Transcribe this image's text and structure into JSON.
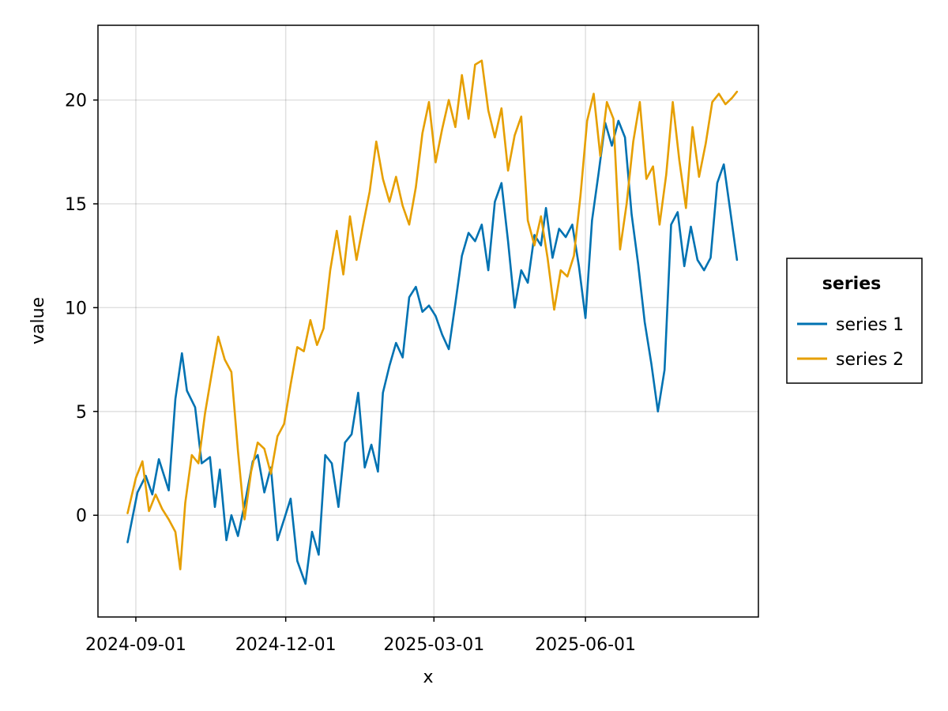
{
  "chart_data": {
    "type": "line",
    "xlabel": "x",
    "ylabel": "value",
    "x_axis": {
      "kind": "date",
      "range": [
        "2024-08-09",
        "2025-09-14"
      ],
      "ticks": [
        "2024-09-01",
        "2024-12-01",
        "2025-03-01",
        "2025-06-01"
      ]
    },
    "y_axis": {
      "range": [
        -4.9,
        23.6
      ],
      "ticks": [
        0,
        5,
        10,
        15,
        20
      ],
      "tick_labels": [
        "0",
        "5",
        "10",
        "15",
        "20"
      ]
    },
    "grid": true,
    "legend": {
      "title": "series",
      "placement": "right"
    },
    "series": [
      {
        "name": "series 1",
        "color": "#0072b2",
        "points": [
          [
            "2024-08-27",
            -1.3
          ],
          [
            "2024-09-02",
            1.1
          ],
          [
            "2024-09-07",
            1.9
          ],
          [
            "2024-09-11",
            1.0
          ],
          [
            "2024-09-15",
            2.7
          ],
          [
            "2024-09-21",
            1.2
          ],
          [
            "2024-09-25",
            5.6
          ],
          [
            "2024-09-29",
            7.8
          ],
          [
            "2024-10-02",
            6.0
          ],
          [
            "2024-10-07",
            5.2
          ],
          [
            "2024-10-11",
            2.5
          ],
          [
            "2024-10-16",
            2.8
          ],
          [
            "2024-10-19",
            0.4
          ],
          [
            "2024-10-22",
            2.2
          ],
          [
            "2024-10-26",
            -1.2
          ],
          [
            "2024-10-29",
            0.0
          ],
          [
            "2024-11-02",
            -1.0
          ],
          [
            "2024-11-07",
            0.9
          ],
          [
            "2024-11-11",
            2.6
          ],
          [
            "2024-11-14",
            2.9
          ],
          [
            "2024-11-18",
            1.1
          ],
          [
            "2024-11-22",
            2.3
          ],
          [
            "2024-11-26",
            -1.2
          ],
          [
            "2024-11-30",
            -0.2
          ],
          [
            "2024-12-04",
            0.8
          ],
          [
            "2024-12-08",
            -2.2
          ],
          [
            "2024-12-13",
            -3.3
          ],
          [
            "2024-12-17",
            -0.8
          ],
          [
            "2024-12-21",
            -1.9
          ],
          [
            "2024-12-25",
            2.9
          ],
          [
            "2024-12-29",
            2.5
          ],
          [
            "2025-01-02",
            0.4
          ],
          [
            "2025-01-06",
            3.5
          ],
          [
            "2025-01-10",
            3.9
          ],
          [
            "2025-01-14",
            5.9
          ],
          [
            "2025-01-18",
            2.3
          ],
          [
            "2025-01-22",
            3.4
          ],
          [
            "2025-01-26",
            2.1
          ],
          [
            "2025-01-29",
            5.9
          ],
          [
            "2025-02-02",
            7.2
          ],
          [
            "2025-02-06",
            8.3
          ],
          [
            "2025-02-10",
            7.6
          ],
          [
            "2025-02-14",
            10.5
          ],
          [
            "2025-02-18",
            11.0
          ],
          [
            "2025-02-22",
            9.8
          ],
          [
            "2025-02-26",
            10.1
          ],
          [
            "2025-03-02",
            9.6
          ],
          [
            "2025-03-06",
            8.7
          ],
          [
            "2025-03-10",
            8.0
          ],
          [
            "2025-03-14",
            10.2
          ],
          [
            "2025-03-18",
            12.5
          ],
          [
            "2025-03-22",
            13.6
          ],
          [
            "2025-03-26",
            13.2
          ],
          [
            "2025-03-30",
            14.0
          ],
          [
            "2025-04-03",
            11.8
          ],
          [
            "2025-04-07",
            15.1
          ],
          [
            "2025-04-11",
            16.0
          ],
          [
            "2025-04-15",
            13.2
          ],
          [
            "2025-04-19",
            10.0
          ],
          [
            "2025-04-23",
            11.8
          ],
          [
            "2025-04-27",
            11.2
          ],
          [
            "2025-05-01",
            13.5
          ],
          [
            "2025-05-05",
            13.0
          ],
          [
            "2025-05-08",
            14.8
          ],
          [
            "2025-05-12",
            12.4
          ],
          [
            "2025-05-16",
            13.8
          ],
          [
            "2025-05-20",
            13.4
          ],
          [
            "2025-05-24",
            14.0
          ],
          [
            "2025-05-28",
            12.0
          ],
          [
            "2025-06-01",
            9.5
          ],
          [
            "2025-06-05",
            14.2
          ],
          [
            "2025-06-09",
            16.5
          ],
          [
            "2025-06-13",
            18.9
          ],
          [
            "2025-06-17",
            17.8
          ],
          [
            "2025-06-21",
            19.0
          ],
          [
            "2025-06-25",
            18.2
          ],
          [
            "2025-06-29",
            14.5
          ],
          [
            "2025-07-03",
            12.1
          ],
          [
            "2025-07-07",
            9.3
          ],
          [
            "2025-07-11",
            7.3
          ],
          [
            "2025-07-15",
            5.0
          ],
          [
            "2025-07-19",
            7.0
          ],
          [
            "2025-07-23",
            14.0
          ],
          [
            "2025-07-27",
            14.6
          ],
          [
            "2025-07-31",
            12.0
          ],
          [
            "2025-08-04",
            13.9
          ],
          [
            "2025-08-08",
            12.3
          ],
          [
            "2025-08-12",
            11.8
          ],
          [
            "2025-08-16",
            12.4
          ],
          [
            "2025-08-20",
            16.0
          ],
          [
            "2025-08-24",
            16.9
          ],
          [
            "2025-08-28",
            14.6
          ],
          [
            "2025-09-01",
            12.3
          ]
        ]
      },
      {
        "name": "series 2",
        "color": "#e69f00",
        "points": [
          [
            "2024-08-27",
            0.1
          ],
          [
            "2024-09-01",
            1.8
          ],
          [
            "2024-09-05",
            2.6
          ],
          [
            "2024-09-09",
            0.2
          ],
          [
            "2024-09-13",
            1.0
          ],
          [
            "2024-09-17",
            0.3
          ],
          [
            "2024-09-21",
            -0.2
          ],
          [
            "2024-09-25",
            -0.8
          ],
          [
            "2024-09-28",
            -2.6
          ],
          [
            "2024-10-01",
            0.6
          ],
          [
            "2024-10-05",
            2.9
          ],
          [
            "2024-10-09",
            2.5
          ],
          [
            "2024-10-13",
            4.9
          ],
          [
            "2024-10-17",
            6.8
          ],
          [
            "2024-10-21",
            8.6
          ],
          [
            "2024-10-25",
            7.5
          ],
          [
            "2024-10-29",
            6.9
          ],
          [
            "2024-11-02",
            3.1
          ],
          [
            "2024-11-06",
            -0.2
          ],
          [
            "2024-11-10",
            2.1
          ],
          [
            "2024-11-14",
            3.5
          ],
          [
            "2024-11-18",
            3.2
          ],
          [
            "2024-11-22",
            2.0
          ],
          [
            "2024-11-26",
            3.8
          ],
          [
            "2024-11-30",
            4.4
          ],
          [
            "2024-12-04",
            6.3
          ],
          [
            "2024-12-08",
            8.1
          ],
          [
            "2024-12-12",
            7.9
          ],
          [
            "2024-12-16",
            9.4
          ],
          [
            "2024-12-20",
            8.2
          ],
          [
            "2024-12-24",
            9.0
          ],
          [
            "2024-12-28",
            11.8
          ],
          [
            "2025-01-01",
            13.7
          ],
          [
            "2025-01-05",
            11.6
          ],
          [
            "2025-01-09",
            14.4
          ],
          [
            "2025-01-13",
            12.3
          ],
          [
            "2025-01-17",
            14.0
          ],
          [
            "2025-01-21",
            15.6
          ],
          [
            "2025-01-25",
            18.0
          ],
          [
            "2025-01-29",
            16.2
          ],
          [
            "2025-02-02",
            15.1
          ],
          [
            "2025-02-06",
            16.3
          ],
          [
            "2025-02-10",
            14.9
          ],
          [
            "2025-02-14",
            14.0
          ],
          [
            "2025-02-18",
            15.8
          ],
          [
            "2025-02-22",
            18.4
          ],
          [
            "2025-02-26",
            19.9
          ],
          [
            "2025-03-02",
            17.0
          ],
          [
            "2025-03-06",
            18.6
          ],
          [
            "2025-03-10",
            20.0
          ],
          [
            "2025-03-14",
            18.7
          ],
          [
            "2025-03-18",
            21.2
          ],
          [
            "2025-03-22",
            19.1
          ],
          [
            "2025-03-26",
            21.7
          ],
          [
            "2025-03-30",
            21.9
          ],
          [
            "2025-04-03",
            19.5
          ],
          [
            "2025-04-07",
            18.2
          ],
          [
            "2025-04-11",
            19.6
          ],
          [
            "2025-04-15",
            16.6
          ],
          [
            "2025-04-19",
            18.3
          ],
          [
            "2025-04-23",
            19.2
          ],
          [
            "2025-04-27",
            14.2
          ],
          [
            "2025-05-01",
            13.0
          ],
          [
            "2025-05-05",
            14.4
          ],
          [
            "2025-05-09",
            12.4
          ],
          [
            "2025-05-13",
            9.9
          ],
          [
            "2025-05-17",
            11.8
          ],
          [
            "2025-05-21",
            11.5
          ],
          [
            "2025-05-25",
            12.5
          ],
          [
            "2025-05-29",
            15.4
          ],
          [
            "2025-06-02",
            19.0
          ],
          [
            "2025-06-06",
            20.3
          ],
          [
            "2025-06-10",
            17.3
          ],
          [
            "2025-06-14",
            19.9
          ],
          [
            "2025-06-18",
            19.1
          ],
          [
            "2025-06-22",
            12.8
          ],
          [
            "2025-06-26",
            15.0
          ],
          [
            "2025-06-30",
            18.0
          ],
          [
            "2025-07-04",
            19.9
          ],
          [
            "2025-07-08",
            16.2
          ],
          [
            "2025-07-12",
            16.8
          ],
          [
            "2025-07-16",
            14.0
          ],
          [
            "2025-07-20",
            16.4
          ],
          [
            "2025-07-24",
            19.9
          ],
          [
            "2025-07-28",
            17.1
          ],
          [
            "2025-08-01",
            14.8
          ],
          [
            "2025-08-05",
            18.7
          ],
          [
            "2025-08-09",
            16.3
          ],
          [
            "2025-08-13",
            17.9
          ],
          [
            "2025-08-17",
            19.9
          ],
          [
            "2025-08-21",
            20.3
          ],
          [
            "2025-08-25",
            19.8
          ],
          [
            "2025-08-29",
            20.1
          ],
          [
            "2025-09-01",
            20.4
          ]
        ]
      }
    ]
  }
}
